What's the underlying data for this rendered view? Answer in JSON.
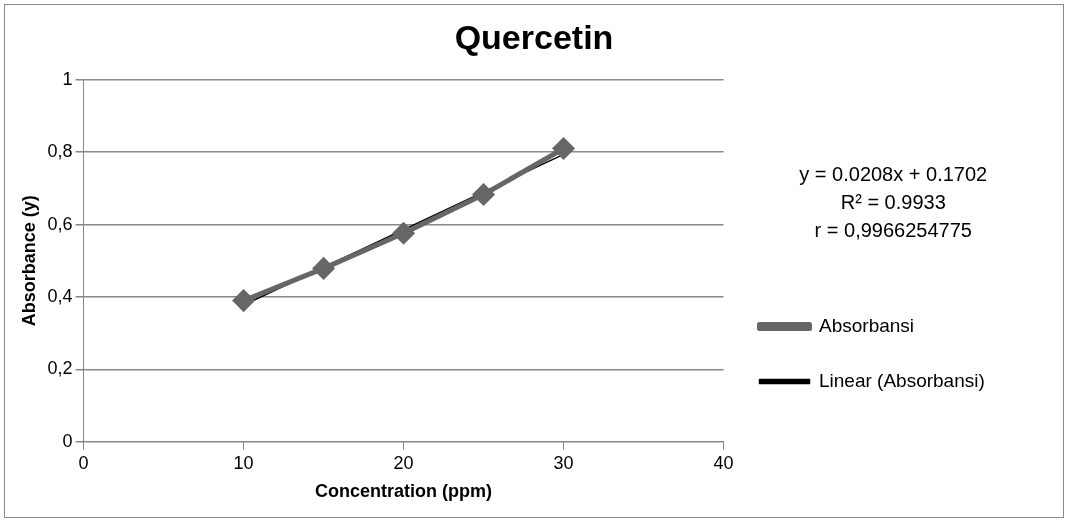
{
  "chart_data": {
    "type": "line",
    "title": "Quercetin",
    "xlabel": "Concentration (ppm)",
    "ylabel": "Absorbance (y)",
    "xlim": [
      0,
      40
    ],
    "xticks": [
      0,
      10,
      20,
      30,
      40
    ],
    "ylim": [
      0,
      1
    ],
    "yticks": [
      0,
      {
        "value": 0.2,
        "label": "0,2"
      },
      {
        "value": 0.4,
        "label": "0,4"
      },
      {
        "value": 0.6,
        "label": "0,6"
      },
      {
        "value": 0.8,
        "label": "0,8"
      },
      1
    ],
    "grid": "y",
    "legend": "right",
    "marker": "diamond",
    "series": [
      {
        "name": "Absorbansi",
        "color": "#666666",
        "x": [
          10,
          15,
          20,
          25,
          30
        ],
        "values": [
          0.39,
          0.479,
          0.576,
          0.683,
          0.81
        ]
      },
      {
        "name": "Linear (Absorbansi)",
        "color": "#000000",
        "marker": "none",
        "x": [
          10,
          30
        ],
        "values": [
          0.378,
          0.794
        ]
      }
    ],
    "annotations": [
      "y = 0.0208x + 0.1702",
      "R² = 0.9933",
      "r = 0,9966254775"
    ]
  }
}
